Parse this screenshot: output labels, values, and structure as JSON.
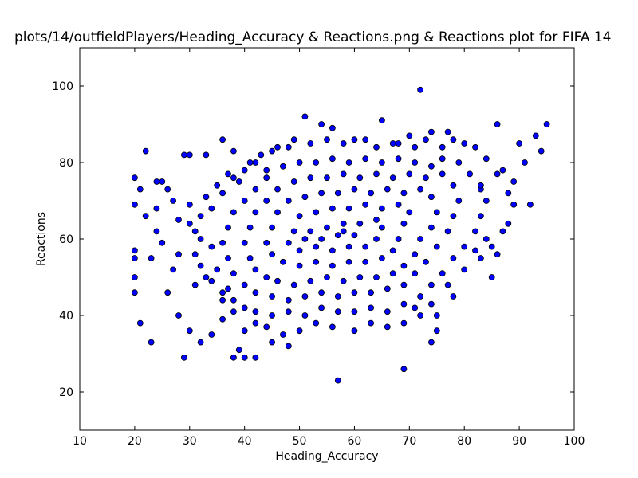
{
  "chart_data": {
    "type": "scatter",
    "title": "plots/14/outfieldPlayers/Heading_Accuracy & Reactions.png & Reactions plot for FIFA 14",
    "xlabel": "Heading_Accuracy",
    "ylabel": "Reactions",
    "xlim": [
      10,
      100
    ],
    "ylim": [
      10,
      110
    ],
    "xticks": [
      10,
      20,
      30,
      40,
      50,
      60,
      70,
      80,
      90,
      100
    ],
    "yticks": [
      20,
      40,
      60,
      80,
      100
    ],
    "grid": false,
    "marker_color": "#0000ff",
    "marker_edge_color": "#000000",
    "series": [
      {
        "points": [
          [
            72,
            99
          ],
          [
            51,
            92
          ],
          [
            95,
            90
          ],
          [
            65,
            91
          ],
          [
            86,
            90
          ],
          [
            54,
            90
          ],
          [
            77,
            88
          ],
          [
            93,
            87
          ],
          [
            94,
            83
          ],
          [
            22,
            83
          ],
          [
            90,
            85
          ],
          [
            91,
            80
          ],
          [
            89,
            75
          ],
          [
            87,
            78
          ],
          [
            83,
            73
          ],
          [
            89,
            69
          ],
          [
            92,
            69
          ],
          [
            20,
            76
          ],
          [
            21,
            73
          ],
          [
            20,
            69
          ],
          [
            20,
            57
          ],
          [
            20,
            55
          ],
          [
            20,
            50
          ],
          [
            20,
            46
          ],
          [
            21,
            38
          ],
          [
            23,
            33
          ],
          [
            24,
            75
          ],
          [
            25,
            75
          ],
          [
            26,
            73
          ],
          [
            27,
            70
          ],
          [
            29,
            82
          ],
          [
            29,
            29
          ],
          [
            30,
            82
          ],
          [
            32,
            33
          ],
          [
            31,
            48
          ],
          [
            33,
            82
          ],
          [
            36,
            86
          ],
          [
            38,
            83
          ],
          [
            38,
            29
          ],
          [
            40,
            29
          ],
          [
            42,
            29
          ],
          [
            39,
            31
          ],
          [
            45,
            33
          ],
          [
            48,
            32
          ],
          [
            57,
            23
          ],
          [
            69,
            26
          ],
          [
            74,
            33
          ],
          [
            75,
            36
          ],
          [
            75,
            40
          ],
          [
            71,
            42
          ],
          [
            78,
            45
          ],
          [
            85,
            50
          ],
          [
            82,
            57
          ],
          [
            86,
            56
          ],
          [
            84,
            60
          ],
          [
            87,
            62
          ],
          [
            74,
            88
          ],
          [
            70,
            87
          ],
          [
            67,
            85
          ],
          [
            60,
            86
          ],
          [
            56,
            89
          ],
          [
            49,
            86
          ],
          [
            46,
            84
          ],
          [
            43,
            82
          ],
          [
            41,
            80
          ],
          [
            44,
            78
          ],
          [
            30,
            64
          ],
          [
            32,
            60
          ],
          [
            34,
            58
          ],
          [
            35,
            52
          ],
          [
            33,
            50
          ],
          [
            36,
            44
          ],
          [
            37,
            47
          ],
          [
            38,
            41
          ],
          [
            27,
            52
          ],
          [
            28,
            56
          ],
          [
            25,
            59
          ],
          [
            24,
            62
          ],
          [
            23,
            55
          ],
          [
            26,
            46
          ],
          [
            22,
            66
          ],
          [
            24,
            68
          ],
          [
            28,
            65
          ],
          [
            30,
            69
          ],
          [
            33,
            71
          ],
          [
            35,
            74
          ],
          [
            37,
            77
          ],
          [
            39,
            75
          ],
          [
            28,
            40
          ],
          [
            30,
            36
          ],
          [
            34,
            35
          ],
          [
            36,
            39
          ],
          [
            40,
            36
          ],
          [
            42,
            38
          ],
          [
            44,
            37
          ],
          [
            47,
            35
          ],
          [
            50,
            36
          ],
          [
            53,
            38
          ],
          [
            56,
            37
          ],
          [
            60,
            36
          ],
          [
            63,
            38
          ],
          [
            66,
            37
          ],
          [
            69,
            38
          ],
          [
            72,
            40
          ],
          [
            74,
            43
          ],
          [
            77,
            48
          ],
          [
            80,
            52
          ],
          [
            83,
            55
          ],
          [
            85,
            58
          ],
          [
            88,
            64
          ],
          [
            88,
            72
          ],
          [
            86,
            77
          ],
          [
            84,
            81
          ],
          [
            82,
            84
          ],
          [
            80,
            85
          ],
          [
            78,
            86
          ],
          [
            76,
            84
          ],
          [
            73,
            86
          ],
          [
            71,
            84
          ],
          [
            68,
            85
          ],
          [
            64,
            84
          ],
          [
            62,
            86
          ],
          [
            58,
            85
          ],
          [
            55,
            86
          ],
          [
            52,
            85
          ],
          [
            48,
            84
          ],
          [
            45,
            83
          ],
          [
            42,
            80
          ],
          [
            40,
            78
          ],
          [
            38,
            76
          ],
          [
            36,
            72
          ],
          [
            34,
            68
          ],
          [
            32,
            66
          ],
          [
            31,
            62
          ],
          [
            31,
            56
          ],
          [
            32,
            53
          ],
          [
            34,
            49
          ],
          [
            36,
            46
          ],
          [
            38,
            44
          ],
          [
            40,
            42
          ],
          [
            42,
            41
          ],
          [
            45,
            40
          ],
          [
            48,
            41
          ],
          [
            51,
            40
          ],
          [
            54,
            42
          ],
          [
            57,
            41
          ],
          [
            60,
            41
          ],
          [
            63,
            42
          ],
          [
            66,
            41
          ],
          [
            69,
            43
          ],
          [
            72,
            45
          ],
          [
            74,
            48
          ],
          [
            76,
            51
          ],
          [
            78,
            55
          ],
          [
            80,
            58
          ],
          [
            82,
            62
          ],
          [
            83,
            66
          ],
          [
            84,
            70
          ],
          [
            83,
            74
          ],
          [
            81,
            77
          ],
          [
            79,
            80
          ],
          [
            76,
            81
          ],
          [
            74,
            79
          ],
          [
            71,
            80
          ],
          [
            68,
            81
          ],
          [
            65,
            80
          ],
          [
            62,
            81
          ],
          [
            59,
            80
          ],
          [
            56,
            81
          ],
          [
            53,
            80
          ],
          [
            50,
            80
          ],
          [
            47,
            79
          ],
          [
            44,
            76
          ],
          [
            42,
            73
          ],
          [
            40,
            70
          ],
          [
            38,
            67
          ],
          [
            37,
            63
          ],
          [
            36,
            59
          ],
          [
            37,
            55
          ],
          [
            38,
            51
          ],
          [
            40,
            48
          ],
          [
            42,
            46
          ],
          [
            45,
            45
          ],
          [
            48,
            44
          ],
          [
            51,
            45
          ],
          [
            54,
            46
          ],
          [
            57,
            45
          ],
          [
            60,
            46
          ],
          [
            63,
            46
          ],
          [
            66,
            47
          ],
          [
            69,
            48
          ],
          [
            71,
            51
          ],
          [
            73,
            54
          ],
          [
            75,
            58
          ],
          [
            77,
            62
          ],
          [
            78,
            66
          ],
          [
            79,
            70
          ],
          [
            78,
            74
          ],
          [
            76,
            77
          ],
          [
            73,
            76
          ],
          [
            70,
            77
          ],
          [
            67,
            76
          ],
          [
            64,
            77
          ],
          [
            61,
            76
          ],
          [
            58,
            77
          ],
          [
            55,
            76
          ],
          [
            52,
            76
          ],
          [
            49,
            75
          ],
          [
            46,
            73
          ],
          [
            44,
            70
          ],
          [
            42,
            67
          ],
          [
            41,
            63
          ],
          [
            40,
            59
          ],
          [
            41,
            55
          ],
          [
            42,
            52
          ],
          [
            44,
            50
          ],
          [
            46,
            49
          ],
          [
            49,
            48
          ],
          [
            52,
            49
          ],
          [
            55,
            50
          ],
          [
            58,
            49
          ],
          [
            61,
            50
          ],
          [
            64,
            50
          ],
          [
            67,
            51
          ],
          [
            69,
            53
          ],
          [
            71,
            56
          ],
          [
            72,
            60
          ],
          [
            74,
            63
          ],
          [
            75,
            67
          ],
          [
            74,
            71
          ],
          [
            72,
            73
          ],
          [
            69,
            72
          ],
          [
            66,
            73
          ],
          [
            63,
            72
          ],
          [
            60,
            73
          ],
          [
            57,
            72
          ],
          [
            54,
            72
          ],
          [
            51,
            71
          ],
          [
            48,
            70
          ],
          [
            46,
            67
          ],
          [
            45,
            63
          ],
          [
            44,
            59
          ],
          [
            45,
            56
          ],
          [
            47,
            54
          ],
          [
            50,
            53
          ],
          [
            53,
            54
          ],
          [
            56,
            53
          ],
          [
            59,
            54
          ],
          [
            62,
            54
          ],
          [
            65,
            55
          ],
          [
            67,
            57
          ],
          [
            68,
            60
          ],
          [
            69,
            64
          ],
          [
            70,
            67
          ],
          [
            68,
            69
          ],
          [
            65,
            68
          ],
          [
            62,
            69
          ],
          [
            59,
            68
          ],
          [
            56,
            68
          ],
          [
            53,
            67
          ],
          [
            50,
            66
          ],
          [
            49,
            62
          ],
          [
            48,
            59
          ],
          [
            50,
            57
          ],
          [
            53,
            58
          ],
          [
            56,
            57
          ],
          [
            59,
            58
          ],
          [
            62,
            58
          ],
          [
            64,
            60
          ],
          [
            65,
            63
          ],
          [
            64,
            65
          ],
          [
            61,
            64
          ],
          [
            58,
            64
          ],
          [
            55,
            63
          ],
          [
            52,
            62
          ],
          [
            51,
            60
          ],
          [
            54,
            60
          ],
          [
            57,
            61
          ],
          [
            60,
            61
          ],
          [
            58,
            62
          ]
        ]
      }
    ]
  }
}
